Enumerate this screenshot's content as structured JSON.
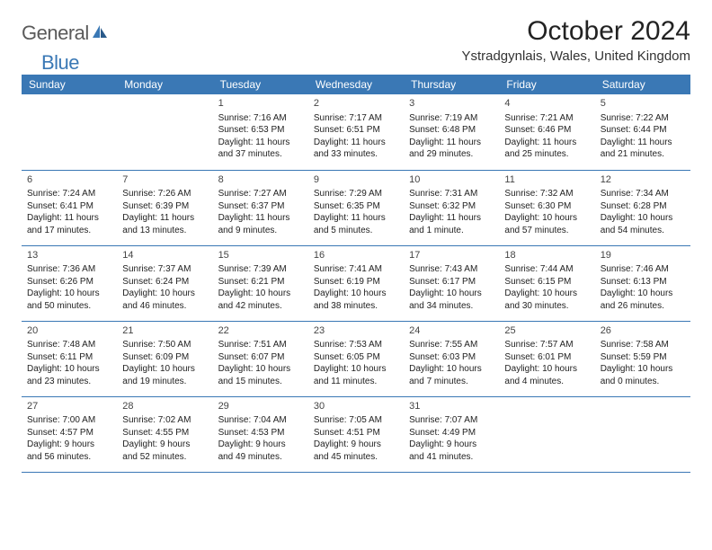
{
  "logo": {
    "word1": "General",
    "word2": "Blue"
  },
  "title": "October 2024",
  "location": "Ystradgynlais, Wales, United Kingdom",
  "colors": {
    "header_bg": "#3a78b5",
    "header_text": "#ffffff",
    "border": "#3a78b5",
    "logo_gray": "#5a5a5a",
    "logo_blue": "#3a78b5",
    "text": "#222222"
  },
  "day_headers": [
    "Sunday",
    "Monday",
    "Tuesday",
    "Wednesday",
    "Thursday",
    "Friday",
    "Saturday"
  ],
  "weeks": [
    [
      null,
      null,
      {
        "n": "1",
        "sr": "Sunrise: 7:16 AM",
        "ss": "Sunset: 6:53 PM",
        "dl": "Daylight: 11 hours and 37 minutes."
      },
      {
        "n": "2",
        "sr": "Sunrise: 7:17 AM",
        "ss": "Sunset: 6:51 PM",
        "dl": "Daylight: 11 hours and 33 minutes."
      },
      {
        "n": "3",
        "sr": "Sunrise: 7:19 AM",
        "ss": "Sunset: 6:48 PM",
        "dl": "Daylight: 11 hours and 29 minutes."
      },
      {
        "n": "4",
        "sr": "Sunrise: 7:21 AM",
        "ss": "Sunset: 6:46 PM",
        "dl": "Daylight: 11 hours and 25 minutes."
      },
      {
        "n": "5",
        "sr": "Sunrise: 7:22 AM",
        "ss": "Sunset: 6:44 PM",
        "dl": "Daylight: 11 hours and 21 minutes."
      }
    ],
    [
      {
        "n": "6",
        "sr": "Sunrise: 7:24 AM",
        "ss": "Sunset: 6:41 PM",
        "dl": "Daylight: 11 hours and 17 minutes."
      },
      {
        "n": "7",
        "sr": "Sunrise: 7:26 AM",
        "ss": "Sunset: 6:39 PM",
        "dl": "Daylight: 11 hours and 13 minutes."
      },
      {
        "n": "8",
        "sr": "Sunrise: 7:27 AM",
        "ss": "Sunset: 6:37 PM",
        "dl": "Daylight: 11 hours and 9 minutes."
      },
      {
        "n": "9",
        "sr": "Sunrise: 7:29 AM",
        "ss": "Sunset: 6:35 PM",
        "dl": "Daylight: 11 hours and 5 minutes."
      },
      {
        "n": "10",
        "sr": "Sunrise: 7:31 AM",
        "ss": "Sunset: 6:32 PM",
        "dl": "Daylight: 11 hours and 1 minute."
      },
      {
        "n": "11",
        "sr": "Sunrise: 7:32 AM",
        "ss": "Sunset: 6:30 PM",
        "dl": "Daylight: 10 hours and 57 minutes."
      },
      {
        "n": "12",
        "sr": "Sunrise: 7:34 AM",
        "ss": "Sunset: 6:28 PM",
        "dl": "Daylight: 10 hours and 54 minutes."
      }
    ],
    [
      {
        "n": "13",
        "sr": "Sunrise: 7:36 AM",
        "ss": "Sunset: 6:26 PM",
        "dl": "Daylight: 10 hours and 50 minutes."
      },
      {
        "n": "14",
        "sr": "Sunrise: 7:37 AM",
        "ss": "Sunset: 6:24 PM",
        "dl": "Daylight: 10 hours and 46 minutes."
      },
      {
        "n": "15",
        "sr": "Sunrise: 7:39 AM",
        "ss": "Sunset: 6:21 PM",
        "dl": "Daylight: 10 hours and 42 minutes."
      },
      {
        "n": "16",
        "sr": "Sunrise: 7:41 AM",
        "ss": "Sunset: 6:19 PM",
        "dl": "Daylight: 10 hours and 38 minutes."
      },
      {
        "n": "17",
        "sr": "Sunrise: 7:43 AM",
        "ss": "Sunset: 6:17 PM",
        "dl": "Daylight: 10 hours and 34 minutes."
      },
      {
        "n": "18",
        "sr": "Sunrise: 7:44 AM",
        "ss": "Sunset: 6:15 PM",
        "dl": "Daylight: 10 hours and 30 minutes."
      },
      {
        "n": "19",
        "sr": "Sunrise: 7:46 AM",
        "ss": "Sunset: 6:13 PM",
        "dl": "Daylight: 10 hours and 26 minutes."
      }
    ],
    [
      {
        "n": "20",
        "sr": "Sunrise: 7:48 AM",
        "ss": "Sunset: 6:11 PM",
        "dl": "Daylight: 10 hours and 23 minutes."
      },
      {
        "n": "21",
        "sr": "Sunrise: 7:50 AM",
        "ss": "Sunset: 6:09 PM",
        "dl": "Daylight: 10 hours and 19 minutes."
      },
      {
        "n": "22",
        "sr": "Sunrise: 7:51 AM",
        "ss": "Sunset: 6:07 PM",
        "dl": "Daylight: 10 hours and 15 minutes."
      },
      {
        "n": "23",
        "sr": "Sunrise: 7:53 AM",
        "ss": "Sunset: 6:05 PM",
        "dl": "Daylight: 10 hours and 11 minutes."
      },
      {
        "n": "24",
        "sr": "Sunrise: 7:55 AM",
        "ss": "Sunset: 6:03 PM",
        "dl": "Daylight: 10 hours and 7 minutes."
      },
      {
        "n": "25",
        "sr": "Sunrise: 7:57 AM",
        "ss": "Sunset: 6:01 PM",
        "dl": "Daylight: 10 hours and 4 minutes."
      },
      {
        "n": "26",
        "sr": "Sunrise: 7:58 AM",
        "ss": "Sunset: 5:59 PM",
        "dl": "Daylight: 10 hours and 0 minutes."
      }
    ],
    [
      {
        "n": "27",
        "sr": "Sunrise: 7:00 AM",
        "ss": "Sunset: 4:57 PM",
        "dl": "Daylight: 9 hours and 56 minutes."
      },
      {
        "n": "28",
        "sr": "Sunrise: 7:02 AM",
        "ss": "Sunset: 4:55 PM",
        "dl": "Daylight: 9 hours and 52 minutes."
      },
      {
        "n": "29",
        "sr": "Sunrise: 7:04 AM",
        "ss": "Sunset: 4:53 PM",
        "dl": "Daylight: 9 hours and 49 minutes."
      },
      {
        "n": "30",
        "sr": "Sunrise: 7:05 AM",
        "ss": "Sunset: 4:51 PM",
        "dl": "Daylight: 9 hours and 45 minutes."
      },
      {
        "n": "31",
        "sr": "Sunrise: 7:07 AM",
        "ss": "Sunset: 4:49 PM",
        "dl": "Daylight: 9 hours and 41 minutes."
      },
      null,
      null
    ]
  ]
}
